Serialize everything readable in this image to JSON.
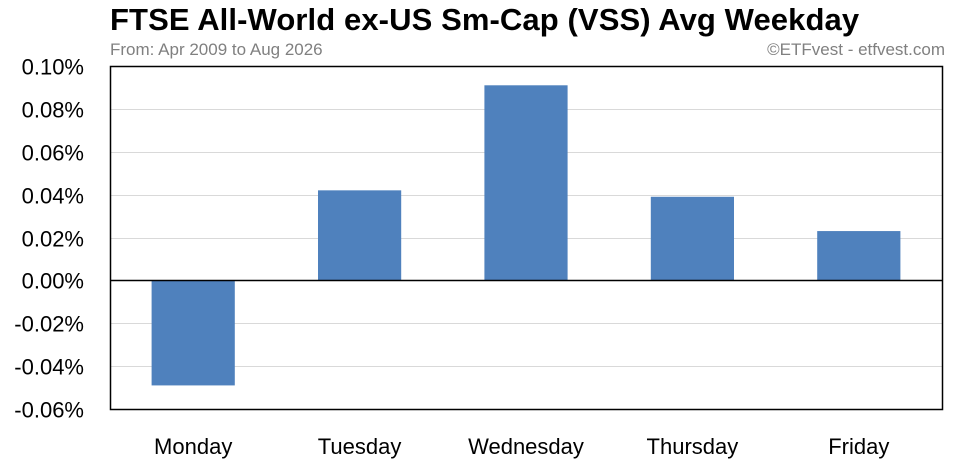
{
  "header": {
    "title": "FTSE All-World ex-US Sm-Cap (VSS) Avg Weekday",
    "subtitle": "From: Apr 2009 to Aug 2026",
    "credit": "©ETFvest - etfvest.com"
  },
  "colors": {
    "bar": "#4f81bd",
    "grid": "#d9d9d9",
    "axis": "#000000"
  },
  "chart_data": {
    "type": "bar",
    "title": "FTSE All-World ex-US Sm-Cap (VSS) Avg Weekday",
    "subtitle": "From: Apr 2009 to Aug 2026",
    "categories": [
      "Monday",
      "Tuesday",
      "Wednesday",
      "Thursday",
      "Friday"
    ],
    "values": [
      -0.049,
      0.042,
      0.091,
      0.039,
      0.023
    ],
    "unit": "%",
    "ylim": [
      -0.06,
      0.1
    ],
    "yticks": [
      0.1,
      0.08,
      0.06,
      0.04,
      0.02,
      0.0,
      -0.02,
      -0.04,
      -0.06
    ],
    "ytick_labels": [
      "0.10%",
      "0.08%",
      "0.06%",
      "0.04%",
      "0.02%",
      "0.00%",
      "-0.02%",
      "-0.04%",
      "-0.06%"
    ],
    "xlabel": "",
    "ylabel": "",
    "grid": true,
    "legend": "none"
  }
}
